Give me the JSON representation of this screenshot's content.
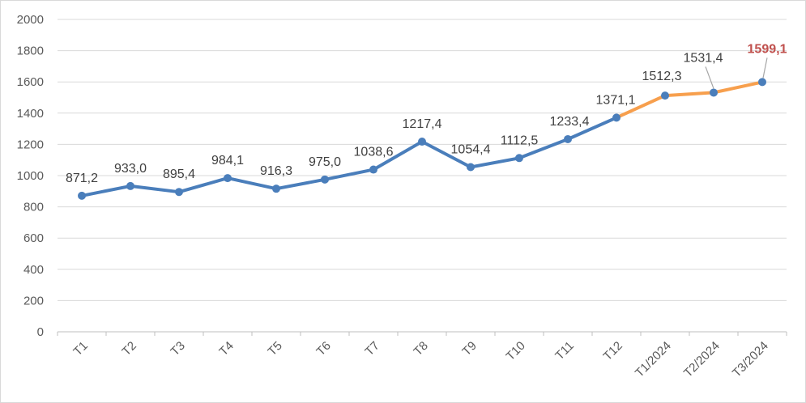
{
  "chart_data": {
    "type": "line",
    "title": "",
    "xlabel": "",
    "ylabel": "",
    "ylim": [
      0,
      2000
    ],
    "yticks": [
      0,
      200,
      400,
      600,
      800,
      1000,
      1200,
      1400,
      1600,
      1800,
      2000
    ],
    "grid": true,
    "legend": "none",
    "categories": [
      "T1",
      "T2",
      "T3",
      "T4",
      "T5",
      "T6",
      "T7",
      "T8",
      "T9",
      "T10",
      "T11",
      "T12",
      "T1/2024",
      "T2/2024",
      "T3/2024"
    ],
    "series": [
      {
        "values": [
          871.2,
          933.0,
          895.4,
          984.1,
          916.3,
          975.0,
          1038.6,
          1217.4,
          1054.4,
          1112.5,
          1233.4,
          1371.1,
          1512.3,
          1531.4,
          1599.1
        ],
        "labels": [
          "871,2",
          "933,0",
          "895,4",
          "984,1",
          "916,3",
          "975,0",
          "1038,6",
          "1217,4",
          "1054,4",
          "1112,5",
          "1233,4",
          "1371,1",
          "1512,3",
          "1531,4",
          "1599,1"
        ],
        "color": "#4a7ebb",
        "highlight_from_index": 11,
        "highlight_color": "#f79f4d",
        "marker_color": "#4a7ebb",
        "last_label_color": "#c0504d"
      }
    ]
  },
  "colors": {
    "grid": "#d9d9d9",
    "axis": "#bfbfbf",
    "tick_text": "#595959",
    "label_text": "#404040",
    "leader_line": "#a6a6a6"
  }
}
